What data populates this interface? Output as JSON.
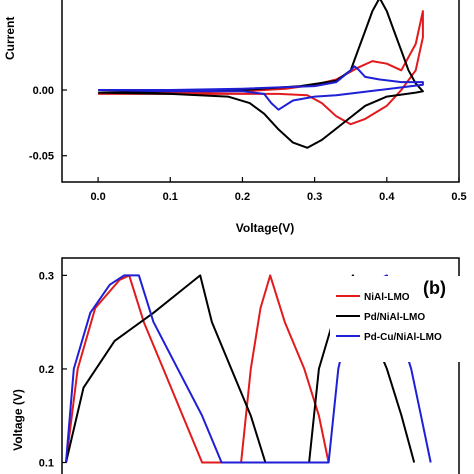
{
  "chart_data": [
    {
      "type": "line",
      "panel": "a",
      "ylabel": "Current",
      "xlabel": "Voltage(V)",
      "xlim": [
        -0.05,
        0.5
      ],
      "ylim": [
        -0.07,
        0.07
      ],
      "x_ticks": [
        "0.0",
        "0.1",
        "0.2",
        "0.3",
        "0.4",
        "0.5"
      ],
      "y_ticks": [
        "0.00",
        "-0.05"
      ],
      "series": [
        {
          "color": "#e31a1c",
          "points": [
            [
              0,
              -0.003
            ],
            [
              0.1,
              -0.002
            ],
            [
              0.2,
              -0.001
            ],
            [
              0.26,
              0.001
            ],
            [
              0.3,
              0.004
            ],
            [
              0.33,
              0.008
            ],
            [
              0.36,
              0.017
            ],
            [
              0.38,
              0.022
            ],
            [
              0.4,
              0.02
            ],
            [
              0.42,
              0.015
            ],
            [
              0.44,
              0.035
            ],
            [
              0.45,
              0.06
            ],
            [
              0.45,
              0.04
            ],
            [
              0.44,
              0.015
            ],
            [
              0.42,
              0.0
            ],
            [
              0.4,
              -0.012
            ],
            [
              0.37,
              -0.022
            ],
            [
              0.35,
              -0.026
            ],
            [
              0.33,
              -0.02
            ],
            [
              0.31,
              -0.01
            ],
            [
              0.29,
              -0.004
            ],
            [
              0.25,
              -0.003
            ],
            [
              0.2,
              -0.003
            ],
            [
              0.1,
              -0.003
            ],
            [
              0,
              -0.003
            ]
          ]
        },
        {
          "color": "#000000",
          "points": [
            [
              0,
              -0.002
            ],
            [
              0.1,
              -0.001
            ],
            [
              0.2,
              0.0
            ],
            [
              0.28,
              0.003
            ],
            [
              0.33,
              0.007
            ],
            [
              0.35,
              0.015
            ],
            [
              0.36,
              0.03
            ],
            [
              0.37,
              0.045
            ],
            [
              0.38,
              0.06
            ],
            [
              0.39,
              0.07
            ],
            [
              0.4,
              0.06
            ],
            [
              0.41,
              0.045
            ],
            [
              0.42,
              0.03
            ],
            [
              0.43,
              0.015
            ],
            [
              0.44,
              0.005
            ],
            [
              0.45,
              -0.001
            ],
            [
              0.44,
              -0.002
            ],
            [
              0.4,
              -0.005
            ],
            [
              0.37,
              -0.012
            ],
            [
              0.34,
              -0.025
            ],
            [
              0.31,
              -0.038
            ],
            [
              0.29,
              -0.044
            ],
            [
              0.27,
              -0.04
            ],
            [
              0.25,
              -0.03
            ],
            [
              0.23,
              -0.018
            ],
            [
              0.21,
              -0.01
            ],
            [
              0.18,
              -0.005
            ],
            [
              0.1,
              -0.003
            ],
            [
              0,
              -0.002
            ]
          ]
        },
        {
          "color": "#1f1fd6",
          "points": [
            [
              0,
              0.0
            ],
            [
              0.1,
              0.0
            ],
            [
              0.2,
              0.001
            ],
            [
              0.3,
              0.003
            ],
            [
              0.33,
              0.006
            ],
            [
              0.35,
              0.015
            ],
            [
              0.355,
              0.018
            ],
            [
              0.36,
              0.016
            ],
            [
              0.37,
              0.01
            ],
            [
              0.39,
              0.008
            ],
            [
              0.42,
              0.006
            ],
            [
              0.45,
              0.006
            ],
            [
              0.45,
              0.004
            ],
            [
              0.42,
              0.002
            ],
            [
              0.39,
              0.0
            ],
            [
              0.36,
              -0.002
            ],
            [
              0.33,
              -0.004
            ],
            [
              0.3,
              -0.005
            ],
            [
              0.27,
              -0.008
            ],
            [
              0.25,
              -0.015
            ],
            [
              0.24,
              -0.01
            ],
            [
              0.23,
              -0.003
            ],
            [
              0.2,
              -0.001
            ],
            [
              0.1,
              -0.001
            ],
            [
              0,
              0.0
            ]
          ]
        }
      ]
    },
    {
      "type": "line",
      "panel": "b",
      "panel_label": "(b)",
      "ylabel": "Voltage (V)",
      "ylim": [
        0.1,
        0.3
      ],
      "y_ticks": [
        "0.3",
        "0.2",
        "0.1"
      ],
      "series": [
        {
          "name": "NiAl-LMO",
          "color": "#e31a1c",
          "points": [
            [
              0,
              0.1
            ],
            [
              12,
              0.2
            ],
            [
              30,
              0.265
            ],
            [
              55,
              0.295
            ],
            [
              65,
              0.3
            ],
            [
              80,
              0.25
            ],
            [
              100,
              0.2
            ],
            [
              120,
              0.15
            ],
            [
              140,
              0.1
            ],
            [
              180,
              0.1
            ],
            [
              190,
              0.2
            ],
            [
              200,
              0.265
            ],
            [
              210,
              0.3
            ],
            [
              225,
              0.25
            ],
            [
              245,
              0.2
            ],
            [
              260,
              0.15
            ],
            [
              270,
              0.1
            ]
          ]
        },
        {
          "name": "Pd/NiAl-LMO",
          "color": "#000000",
          "points": [
            [
              0,
              0.1
            ],
            [
              18,
              0.18
            ],
            [
              50,
              0.23
            ],
            [
              90,
              0.26
            ],
            [
              120,
              0.285
            ],
            [
              138,
              0.3
            ],
            [
              150,
              0.25
            ],
            [
              170,
              0.2
            ],
            [
              190,
              0.15
            ],
            [
              205,
              0.1
            ],
            [
              250,
              0.1
            ],
            [
              260,
              0.2
            ],
            [
              280,
              0.27
            ],
            [
              295,
              0.3
            ],
            [
              310,
              0.25
            ],
            [
              330,
              0.2
            ],
            [
              345,
              0.15
            ],
            [
              358,
              0.1
            ]
          ]
        },
        {
          "name": "Pd-Cu/NiAl-LMO",
          "color": "#1f1fd6",
          "points": [
            [
              0,
              0.1
            ],
            [
              8,
              0.2
            ],
            [
              25,
              0.26
            ],
            [
              45,
              0.29
            ],
            [
              60,
              0.3
            ],
            [
              75,
              0.3
            ],
            [
              90,
              0.25
            ],
            [
              115,
              0.2
            ],
            [
              140,
              0.15
            ],
            [
              160,
              0.1
            ],
            [
              270,
              0.1
            ],
            [
              280,
              0.2
            ],
            [
              295,
              0.27
            ],
            [
              310,
              0.29
            ],
            [
              330,
              0.3
            ],
            [
              340,
              0.25
            ],
            [
              355,
              0.2
            ],
            [
              365,
              0.15
            ],
            [
              375,
              0.1
            ]
          ]
        }
      ]
    }
  ]
}
